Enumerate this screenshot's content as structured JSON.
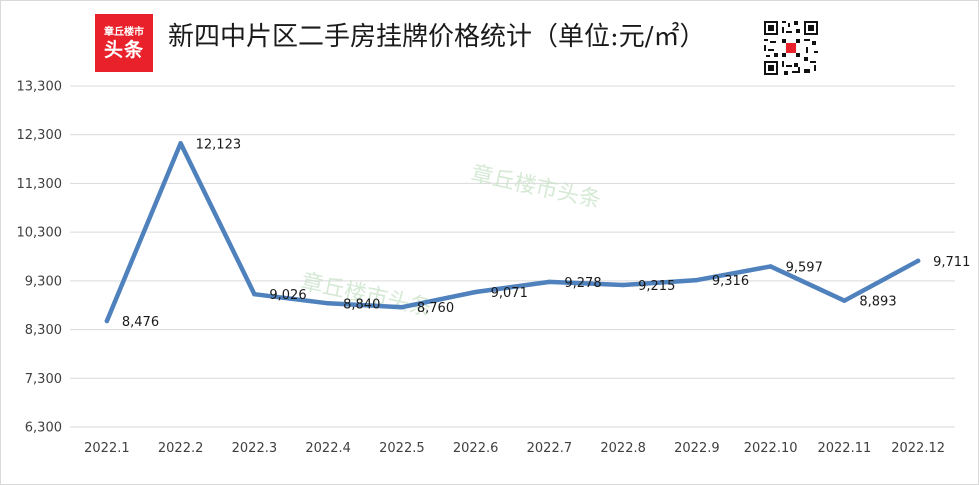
{
  "header": {
    "logo_line1": "章丘楼市",
    "logo_line2": "头条",
    "title": "新四中片区二手房挂牌价格统计（单位:元/㎡）"
  },
  "watermarks": [
    "章丘楼市头条",
    "章丘楼市头条"
  ],
  "colors": {
    "line": "#4f81bd",
    "grid": "#d9d9d9",
    "logo": "#e8212a"
  },
  "chart_data": {
    "type": "line",
    "title": "新四中片区二手房挂牌价格统计（单位:元/㎡）",
    "xlabel": "",
    "ylabel": "",
    "categories": [
      "2022.1",
      "2022.2",
      "2022.3",
      "2022.4",
      "2022.5",
      "2022.6",
      "2022.7",
      "2022.8",
      "2022.9",
      "2022.10",
      "2022.11",
      "2022.12"
    ],
    "values": [
      8476,
      12123,
      9026,
      8840,
      8760,
      9071,
      9278,
      9215,
      9316,
      9597,
      8893,
      9711
    ],
    "data_labels": [
      "8,476",
      "12,123",
      "9,026",
      "8,840",
      "8,760",
      "9,071",
      "9,278",
      "9,215",
      "9,316",
      "9,597",
      "8,893",
      "9,711"
    ],
    "yticks": [
      6300,
      7300,
      8300,
      9300,
      10300,
      11300,
      12300,
      13300
    ],
    "ytick_labels": [
      "6,300",
      "7,300",
      "8,300",
      "9,300",
      "10,300",
      "11,300",
      "12,300",
      "13,300"
    ],
    "ylim": [
      6300,
      13300
    ],
    "grid": true,
    "legend": "none"
  }
}
